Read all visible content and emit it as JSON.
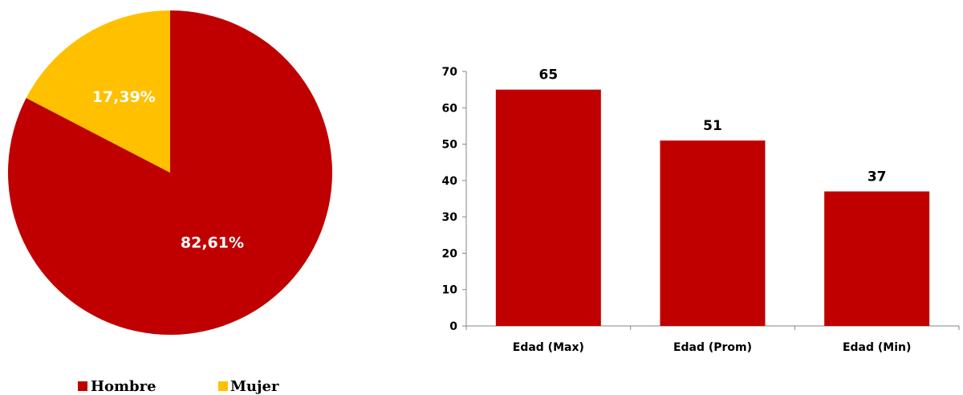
{
  "chart_data": [
    {
      "type": "pie",
      "title": "",
      "slices": [
        {
          "label": "Hombre",
          "value": 82.61,
          "display": "82,61%",
          "color": "#C00000"
        },
        {
          "label": "Mujer",
          "value": 17.39,
          "display": "17,39%",
          "color": "#FFC000"
        }
      ],
      "legend_placement": "bottom"
    },
    {
      "type": "bar",
      "title": "",
      "categories": [
        "Edad (Max)",
        "Edad (Prom)",
        "Edad (Min)"
      ],
      "values": [
        65,
        51,
        37
      ],
      "value_labels": [
        "65",
        "51",
        "37"
      ],
      "xlabel": "",
      "ylabel": "",
      "ylim": [
        0,
        70
      ],
      "yticks": [
        "0",
        "10",
        "20",
        "30",
        "40",
        "50",
        "60",
        "70"
      ],
      "color": "#C00000",
      "grid": false
    }
  ]
}
